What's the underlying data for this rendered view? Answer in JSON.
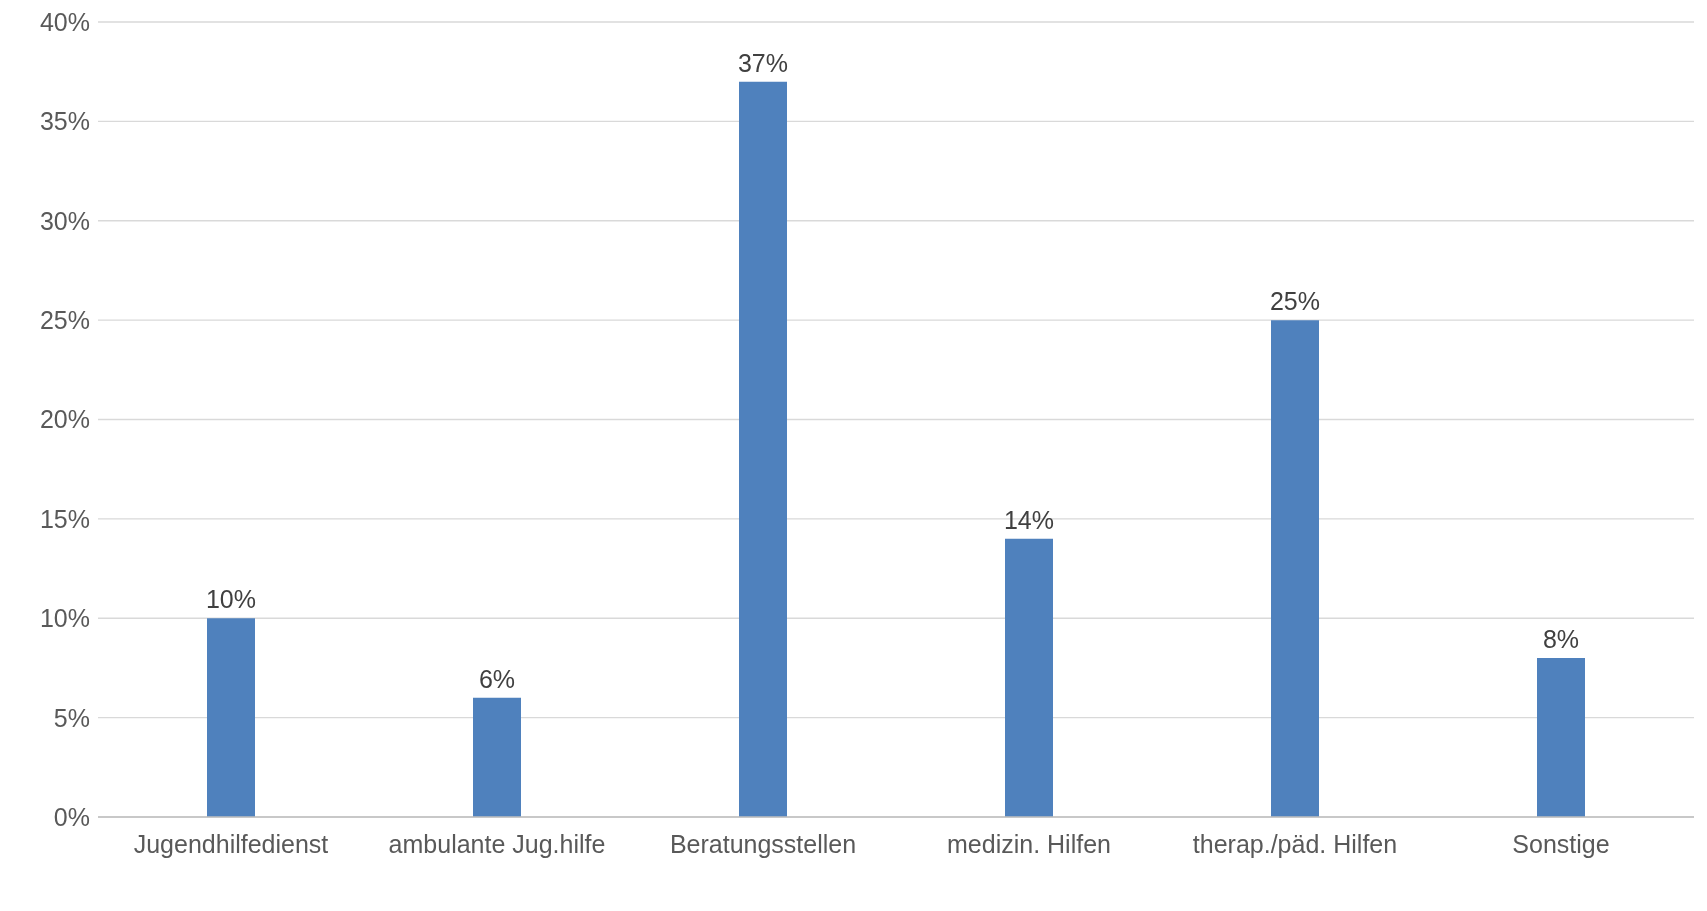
{
  "chart_data": {
    "type": "bar",
    "categories": [
      "Jugendhilfedienst",
      "ambulante Jug.hilfe",
      "Beratungsstellen",
      "medizin. Hilfen",
      "therap./päd. Hilfen",
      "Sonstige"
    ],
    "values": [
      10,
      6,
      37,
      14,
      25,
      8
    ],
    "value_labels": [
      "10%",
      "6%",
      "37%",
      "14%",
      "25%",
      "8%"
    ],
    "color": "#4f81bd",
    "ylim": [
      0,
      40
    ],
    "yticks": [
      {
        "value": 0,
        "label": "0%"
      },
      {
        "value": 5,
        "label": "5%"
      },
      {
        "value": 10,
        "label": "10%"
      },
      {
        "value": 15,
        "label": "15%"
      },
      {
        "value": 20,
        "label": "20%"
      },
      {
        "value": 25,
        "label": "25%"
      },
      {
        "value": 30,
        "label": "30%"
      },
      {
        "value": 35,
        "label": "35%"
      },
      {
        "value": 40,
        "label": "40%"
      }
    ],
    "grid": "y",
    "legend": false
  }
}
